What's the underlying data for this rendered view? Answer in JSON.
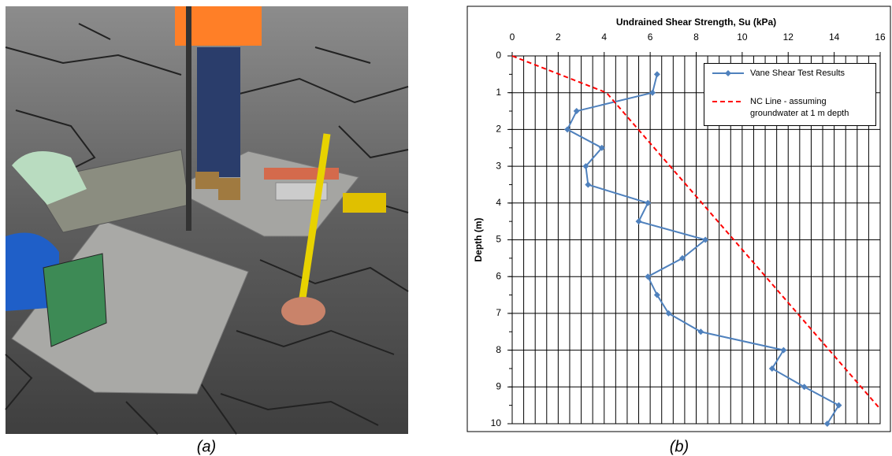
{
  "chart_data": {
    "type": "line",
    "x_label": "Undrained Shear Strength, Su (kPa)",
    "y_label": "Depth (m)",
    "xlim": [
      0,
      16
    ],
    "xticks": [
      0,
      2,
      4,
      6,
      8,
      10,
      12,
      14,
      16
    ],
    "ylim": [
      0,
      10
    ],
    "yticks": [
      0,
      1,
      2,
      3,
      4,
      5,
      6,
      7,
      8,
      9,
      10
    ],
    "y_inverted": true,
    "x_axis_position": "top",
    "grid": true,
    "xgrid_step": 0.5,
    "ygrid_step": 1,
    "yminor_step": 0.5,
    "legend_position": "upper right",
    "series": [
      {
        "name": "Vane Shear Test Results",
        "color": "#4f81bd",
        "marker": "diamond",
        "dashed": false,
        "x": [
          6.3,
          6.1,
          2.8,
          2.4,
          3.9,
          3.2,
          3.3,
          5.9,
          5.5,
          8.4,
          7.4,
          5.9,
          6.3,
          6.8,
          8.2,
          11.8,
          11.3,
          12.7,
          14.2,
          13.7
        ],
        "values": [
          0.5,
          1.0,
          1.5,
          2.0,
          2.5,
          3.0,
          3.5,
          4.0,
          4.5,
          5.0,
          5.5,
          6.0,
          6.5,
          7.0,
          7.5,
          8.0,
          8.5,
          9.0,
          9.5,
          10.0
        ]
      },
      {
        "name": "NC Line - assuming groundwater at 1 m depth",
        "color": "#ff0000",
        "marker": "none",
        "dashed": true,
        "x": [
          0,
          4.1,
          16
        ],
        "values": [
          0,
          1,
          9.6
        ]
      }
    ]
  },
  "captions": {
    "a": "(a)",
    "b": "(b)"
  }
}
